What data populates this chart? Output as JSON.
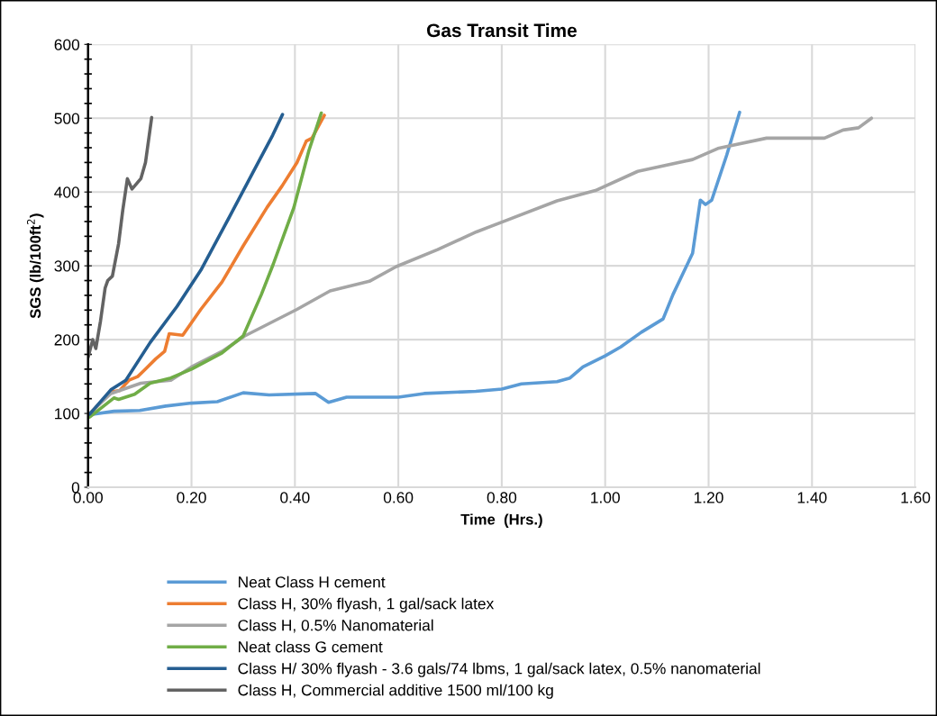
{
  "chart_data": {
    "type": "line",
    "title": "Gas Transit Time",
    "xlabel": "Time  (Hrs.)",
    "ylabel": "SGS (lb/100ft$^{2}$)",
    "xlim": [
      0,
      1.6
    ],
    "ylim": [
      0,
      600
    ],
    "xticks": [
      {
        "value": 0,
        "label": "0.00"
      },
      {
        "value": 0.2,
        "label": "0.20"
      },
      {
        "value": 0.4,
        "label": "0.40"
      },
      {
        "value": 0.6,
        "label": "0.60"
      },
      {
        "value": 0.8,
        "label": "0.80"
      },
      {
        "value": 1.0,
        "label": "1.00"
      },
      {
        "value": 1.2,
        "label": "1.20"
      },
      {
        "value": 1.4,
        "label": "1.40"
      },
      {
        "value": 1.6,
        "label": "1.60"
      }
    ],
    "yticks": [
      0,
      {
        "value": 20,
        "label": null
      },
      {
        "value": 40,
        "label": null
      },
      {
        "value": 60,
        "label": null
      },
      {
        "value": 80,
        "label": null
      },
      100,
      {
        "value": 120,
        "label": null
      },
      {
        "value": 140,
        "label": null
      },
      {
        "value": 160,
        "label": null
      },
      {
        "value": 180,
        "label": null
      },
      200,
      {
        "value": 220,
        "label": null
      },
      {
        "value": 240,
        "label": null
      },
      {
        "value": 260,
        "label": null
      },
      {
        "value": 280,
        "label": null
      },
      300,
      {
        "value": 320,
        "label": null
      },
      {
        "value": 340,
        "label": null
      },
      {
        "value": 360,
        "label": null
      },
      {
        "value": 380,
        "label": null
      },
      400,
      {
        "value": 420,
        "label": null
      },
      {
        "value": 440,
        "label": null
      },
      {
        "value": 460,
        "label": null
      },
      {
        "value": 480,
        "label": null
      },
      500,
      {
        "value": 520,
        "label": null
      },
      {
        "value": 540,
        "label": null
      },
      {
        "value": 560,
        "label": null
      },
      {
        "value": 580,
        "label": null
      },
      600
    ],
    "grid": true,
    "legend": "bottom",
    "marker": "none",
    "line_style": "solid",
    "series": [
      {
        "name": "Neat Class H cement",
        "color": "#5b9bd5",
        "x": [
          0,
          0.05,
          0.1,
          0.15,
          0.2,
          0.25,
          0.3,
          0.35,
          0.44,
          0.465,
          0.5,
          0.6,
          0.65,
          0.75,
          0.8,
          0.838,
          0.907,
          0.932,
          0.957,
          1.0,
          1.03,
          1.07,
          1.112,
          1.131,
          1.169,
          1.184,
          1.194,
          1.206,
          1.235,
          1.26
        ],
        "values": [
          98,
          103,
          104,
          110,
          114,
          116,
          128,
          125,
          127,
          115,
          122,
          122,
          127,
          130,
          133,
          140,
          143,
          148,
          163,
          178,
          190,
          210,
          228,
          261,
          317,
          389,
          383,
          389,
          450,
          508
        ]
      },
      {
        "name": "Class H, 30% flyash, 1 gal/sack latex",
        "color": "#ed7d31",
        "x": [
          0.003,
          0.044,
          0.061,
          0.079,
          0.096,
          0.108,
          0.131,
          0.148,
          0.157,
          0.183,
          0.218,
          0.259,
          0.3,
          0.346,
          0.375,
          0.404,
          0.422,
          0.433,
          0.457
        ],
        "values": [
          99,
          129,
          131,
          145,
          150,
          158,
          174,
          184,
          208,
          206,
          241,
          278,
          327,
          379,
          408,
          440,
          469,
          473,
          504
        ]
      },
      {
        "name": "Class H, 0.5% Nanomaterial",
        "color": "#a5a5a5",
        "x": [
          0,
          0.044,
          0.102,
          0.16,
          0.2,
          0.259,
          0.303,
          0.404,
          0.468,
          0.544,
          0.596,
          0.676,
          0.751,
          0.807,
          0.907,
          0.981,
          1.063,
          1.169,
          1.218,
          1.312,
          1.424,
          1.46,
          1.49,
          1.515
        ],
        "values": [
          98,
          127,
          141,
          145,
          163,
          184,
          205,
          241,
          266,
          279,
          299,
          322,
          346,
          361,
          388,
          402,
          428,
          444,
          459,
          473,
          473,
          484,
          487,
          500
        ]
      },
      {
        "name": "Neat class G cement",
        "color": "#70ad47",
        "x": [
          0.003,
          0.05,
          0.059,
          0.09,
          0.12,
          0.16,
          0.2,
          0.259,
          0.3,
          0.335,
          0.358,
          0.398,
          0.427,
          0.451
        ],
        "values": [
          95,
          121,
          119,
          126,
          141,
          148,
          160,
          182,
          205,
          261,
          302,
          379,
          456,
          507
        ]
      },
      {
        "name": "Class H/ 30% flyash - 3.6 gals/74 lbms, 1 gal/sack latex, 0.5% nanomaterial",
        "color": "#255e91",
        "x": [
          0.003,
          0.044,
          0.073,
          0.12,
          0.172,
          0.218,
          0.277,
          0.323,
          0.357,
          0.376
        ],
        "values": [
          99,
          132,
          145,
          196,
          245,
          294,
          371,
          432,
          477,
          505
        ]
      },
      {
        "name": "Class H, Commercial additive 1500 ml/100 kg",
        "color": "#636363",
        "x": [
          0,
          0.009,
          0.015,
          0.024,
          0.033,
          0.038,
          0.047,
          0.059,
          0.067,
          0.076,
          0.085,
          0.102,
          0.111,
          0.123
        ],
        "values": [
          176,
          200,
          188,
          225,
          270,
          280,
          286,
          330,
          375,
          418,
          404,
          418,
          440,
          501
        ]
      }
    ]
  }
}
